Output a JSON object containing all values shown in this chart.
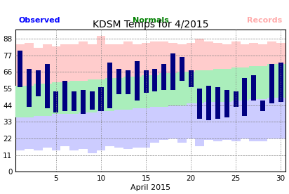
{
  "title": "KDSM Temps for 4/2015",
  "xlabel": "April 2015",
  "ylim": [
    0,
    94
  ],
  "yticks": [
    0,
    11,
    22,
    33,
    44,
    55,
    66,
    77,
    88
  ],
  "xticks": [
    5,
    10,
    15,
    20,
    25,
    30
  ],
  "days": [
    1,
    2,
    3,
    4,
    5,
    6,
    7,
    8,
    9,
    10,
    11,
    12,
    13,
    14,
    15,
    16,
    17,
    18,
    19,
    20,
    21,
    22,
    23,
    24,
    25,
    26,
    27,
    28,
    29,
    30
  ],
  "obs_high": [
    80,
    68,
    67,
    71,
    53,
    60,
    53,
    54,
    53,
    56,
    72,
    68,
    67,
    73,
    67,
    68,
    71,
    78,
    76,
    67,
    55,
    57,
    56,
    54,
    53,
    62,
    64,
    47,
    71,
    72
  ],
  "obs_low": [
    56,
    43,
    50,
    42,
    39,
    40,
    40,
    38,
    41,
    40,
    42,
    51,
    51,
    47,
    52,
    53,
    54,
    54,
    60,
    56,
    35,
    34,
    35,
    36,
    43,
    37,
    47,
    40,
    45,
    46
  ],
  "norm_high": [
    57,
    57,
    58,
    58,
    59,
    59,
    60,
    60,
    61,
    61,
    62,
    62,
    63,
    63,
    64,
    64,
    65,
    65,
    66,
    66,
    67,
    67,
    68,
    68,
    69,
    69,
    70,
    70,
    71,
    71
  ],
  "norm_low": [
    36,
    36,
    37,
    37,
    38,
    38,
    38,
    39,
    39,
    40,
    40,
    41,
    41,
    42,
    42,
    43,
    43,
    44,
    44,
    45,
    45,
    46,
    46,
    46,
    47,
    47,
    48,
    48,
    49,
    49
  ],
  "rec_high": [
    84,
    85,
    82,
    84,
    83,
    84,
    84,
    86,
    84,
    90,
    84,
    84,
    86,
    84,
    85,
    86,
    86,
    85,
    84,
    85,
    88,
    86,
    85,
    84,
    86,
    84,
    85,
    84,
    86,
    85
  ],
  "rec_low": [
    14,
    15,
    14,
    16,
    14,
    17,
    14,
    15,
    12,
    14,
    17,
    16,
    15,
    16,
    16,
    19,
    21,
    22,
    19,
    22,
    17,
    21,
    20,
    21,
    20,
    22,
    20,
    20,
    22,
    22
  ],
  "bar_color": "#000080",
  "norm_color": "#aaeebb",
  "rec_high_color": "#ffcccc",
  "rec_low_color": "#ccccff",
  "bg_color": "white",
  "bar_width": 0.55,
  "figsize": [
    4.12,
    2.76
  ],
  "dpi": 100,
  "legend_obs_color": "blue",
  "legend_norm_color": "green",
  "legend_rec_color": "#ffaaaa",
  "title_fontsize": 10,
  "legend_fontsize": 8,
  "tick_fontsize": 7.5,
  "xlabel_fontsize": 8
}
